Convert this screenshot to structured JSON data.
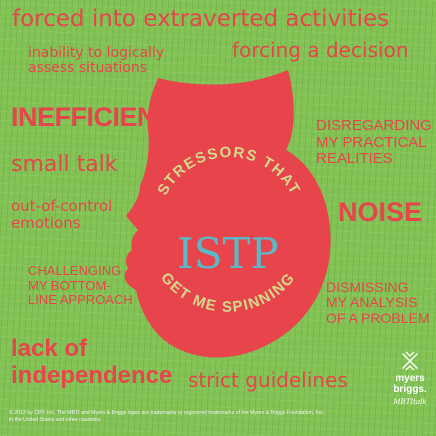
{
  "stressors": {
    "forced_extraverted": "forced into extraverted activities",
    "inability_line1": "inability to logically",
    "inability_line2": "assess situations",
    "forcing_decision": "forcing a decision",
    "inefficiency": "INEFFICIENCY",
    "disregarding_line1": "DISREGARDING",
    "disregarding_line2": "MY PRACTICAL",
    "disregarding_line3": "REALITIES",
    "small_talk": "small talk",
    "out_of_control_line1": "out-of-control",
    "out_of_control_line2": "emotions",
    "noise": "NOISE",
    "challenging_line1": "CHALLENGING",
    "challenging_line2": "MY BOTTOM-",
    "challenging_line3": "LINE APPROACH",
    "dismissing_line1": "DISMISSING",
    "dismissing_line2": "MY ANALYSIS",
    "dismissing_line3": "OF A PROBLEM",
    "lack_line1": "lack of",
    "lack_line2": "independence",
    "strict_guidelines": "strict guidelines"
  },
  "center": {
    "arc_top": "STRESSORS THAT",
    "type": "ISTP",
    "arc_bottom": "GET ME SPINNING"
  },
  "footer": {
    "copyright_line1": "© 2013 by CPP, Inc. The MBTI and Myers & Briggs logos are trademarks or registered trademarks of the Myers & Briggs Foundation, Inc.,",
    "copyright_line2": "in the United States and other countries."
  },
  "logo": {
    "line1": "myers",
    "line2": "briggs.",
    "line3": "MBTItalk"
  },
  "colors": {
    "background": "#83c355",
    "head": "#e8444b",
    "text_red": "#e8444b",
    "arc_text": "#d4d98a",
    "type_text": "#5bb8c9",
    "logo_white": "#ffffff"
  }
}
